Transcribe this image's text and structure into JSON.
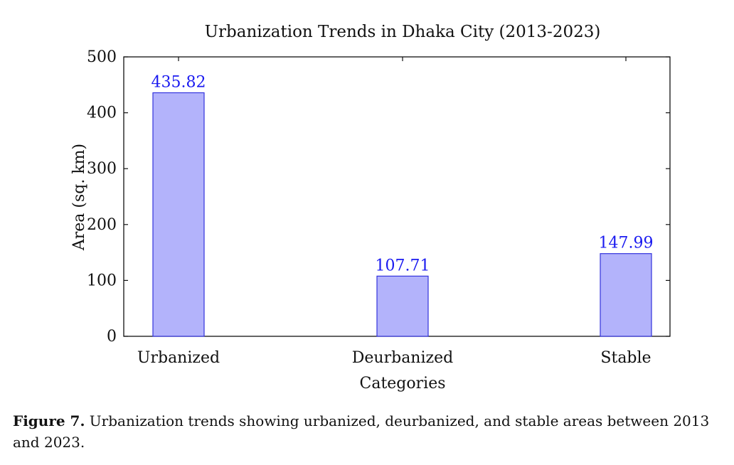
{
  "chart_data": {
    "type": "bar",
    "title": "Urbanization Trends in Dhaka City (2013-2023)",
    "xlabel": "Categories",
    "ylabel": "Area (sq. km)",
    "categories": [
      "Urbanized",
      "Deurbanized",
      "Stable"
    ],
    "values": [
      435.82,
      107.71,
      147.99
    ],
    "value_labels": [
      "435.82",
      "107.71",
      "147.99"
    ],
    "ylim": [
      0,
      500
    ],
    "yticks": [
      0,
      100,
      200,
      300,
      400,
      500
    ],
    "grid": false,
    "bar_fill": "#b3b3fb",
    "bar_stroke": "#3333dd",
    "label_color": "#1a1af0"
  },
  "caption": {
    "label": "Figure 7.",
    "text": "Urbanization trends showing urbanized, deurbanized, and stable areas between 2013 and 2023."
  }
}
